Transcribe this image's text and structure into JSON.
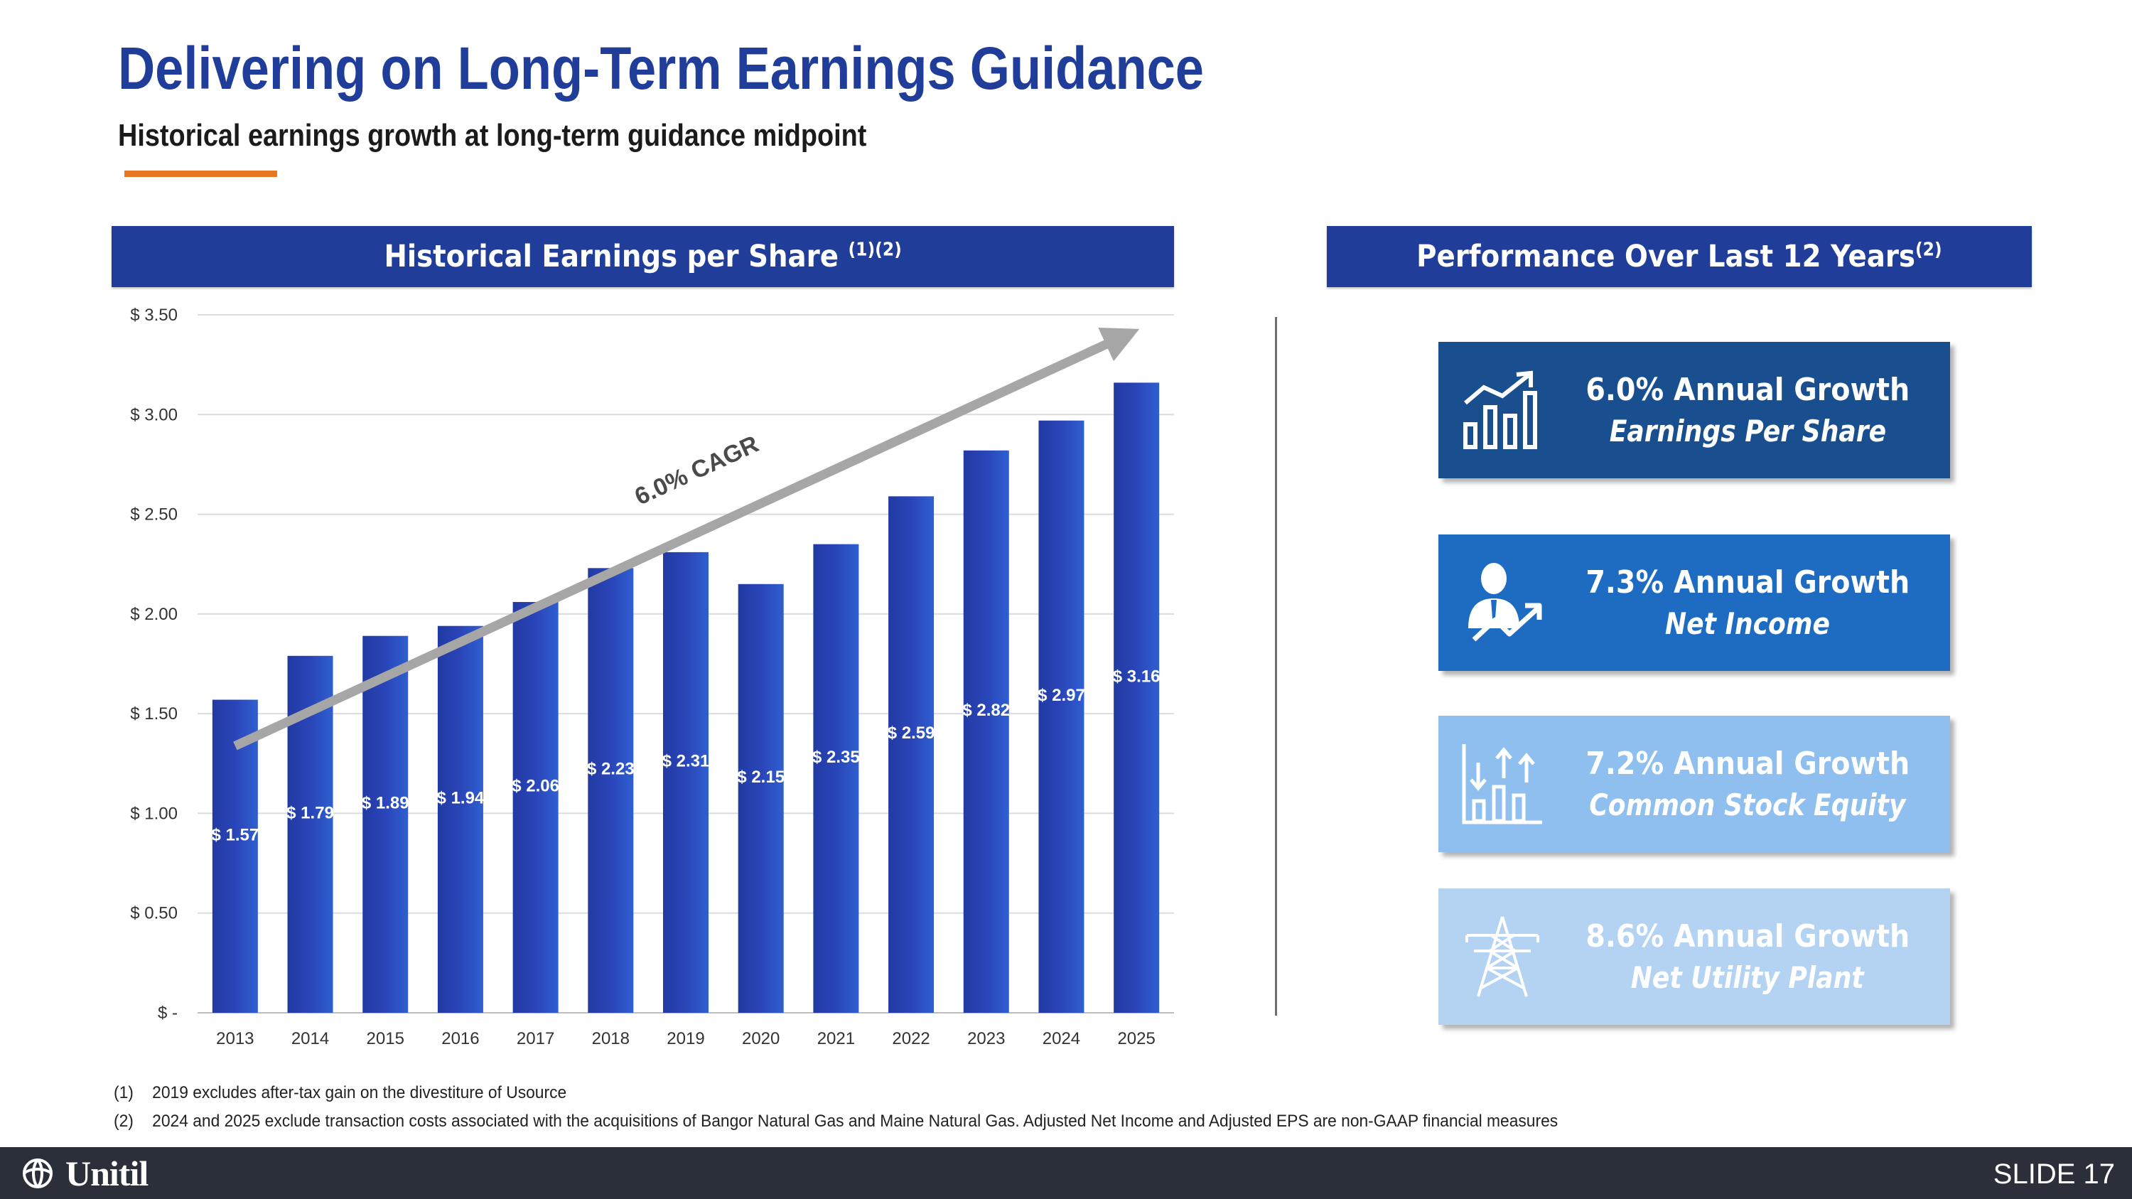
{
  "page": {
    "title": "Delivering on Long-Term Earnings Guidance",
    "subtitle": "Historical earnings growth at long-term guidance midpoint"
  },
  "chart_panel": {
    "header": "Historical Earnings per Share",
    "header_sup": "(1)(2)"
  },
  "chart_data": {
    "type": "bar",
    "title": "Historical Earnings per Share",
    "categories": [
      "2013",
      "2014",
      "2015",
      "2016",
      "2017",
      "2018",
      "2019",
      "2020",
      "2021",
      "2022",
      "2023",
      "2024",
      "2025"
    ],
    "values": [
      1.57,
      1.79,
      1.89,
      1.94,
      2.06,
      2.23,
      2.31,
      2.15,
      2.35,
      2.59,
      2.82,
      2.97,
      3.16
    ],
    "value_labels": [
      "$ 1.57",
      "$ 1.79",
      "$ 1.89",
      "$ 1.94",
      "$ 2.06",
      "$ 2.23",
      "$ 2.31",
      "$ 2.15",
      "$ 2.35",
      "$ 2.59",
      "$ 2.82",
      "$ 2.97",
      "$ 3.16"
    ],
    "ylim": [
      0,
      3.5
    ],
    "yticks": [
      0,
      0.5,
      1.0,
      1.5,
      2.0,
      2.5,
      3.0,
      3.5
    ],
    "ytick_labels": [
      "$ -",
      "$ 0.50",
      "$ 1.00",
      "$ 1.50",
      "$ 2.00",
      "$ 2.50",
      "$ 3.00",
      "$ 3.50"
    ],
    "xlabel": "",
    "ylabel": "",
    "grid": true,
    "annotation": "6.0% CAGR",
    "bar_color": "#2a45b8"
  },
  "performance": {
    "header": "Performance Over Last 12 Years",
    "header_sup": "(2)",
    "cards": [
      {
        "main": "6.0% Annual Growth",
        "sub": "Earnings Per Share",
        "icon": "bar-chart-growth-icon",
        "bg": "#1a4f8f"
      },
      {
        "main": "7.3% Annual Growth",
        "sub": "Net Income",
        "icon": "businessman-growth-icon",
        "bg": "#1d6cc2"
      },
      {
        "main": "7.2% Annual Growth",
        "sub": "Common Stock Equity",
        "icon": "equity-bars-icon",
        "bg": "#8fbfee"
      },
      {
        "main": "8.6% Annual Growth",
        "sub": "Net Utility Plant",
        "icon": "transmission-tower-icon",
        "bg": "#b4d3f3"
      }
    ]
  },
  "footnotes": [
    {
      "num": "(1)",
      "text": "2019 excludes after-tax gain on the divestiture of Usource"
    },
    {
      "num": "(2)",
      "text": "2024 and 2025 exclude transaction costs associated with the acquisitions of Bangor Natural Gas and Maine Natural Gas. Adjusted Net Income and Adjusted EPS are non-GAAP financial measures"
    }
  ],
  "footer": {
    "logo_text": "Unitil",
    "slide_label": "SLIDE 17"
  }
}
